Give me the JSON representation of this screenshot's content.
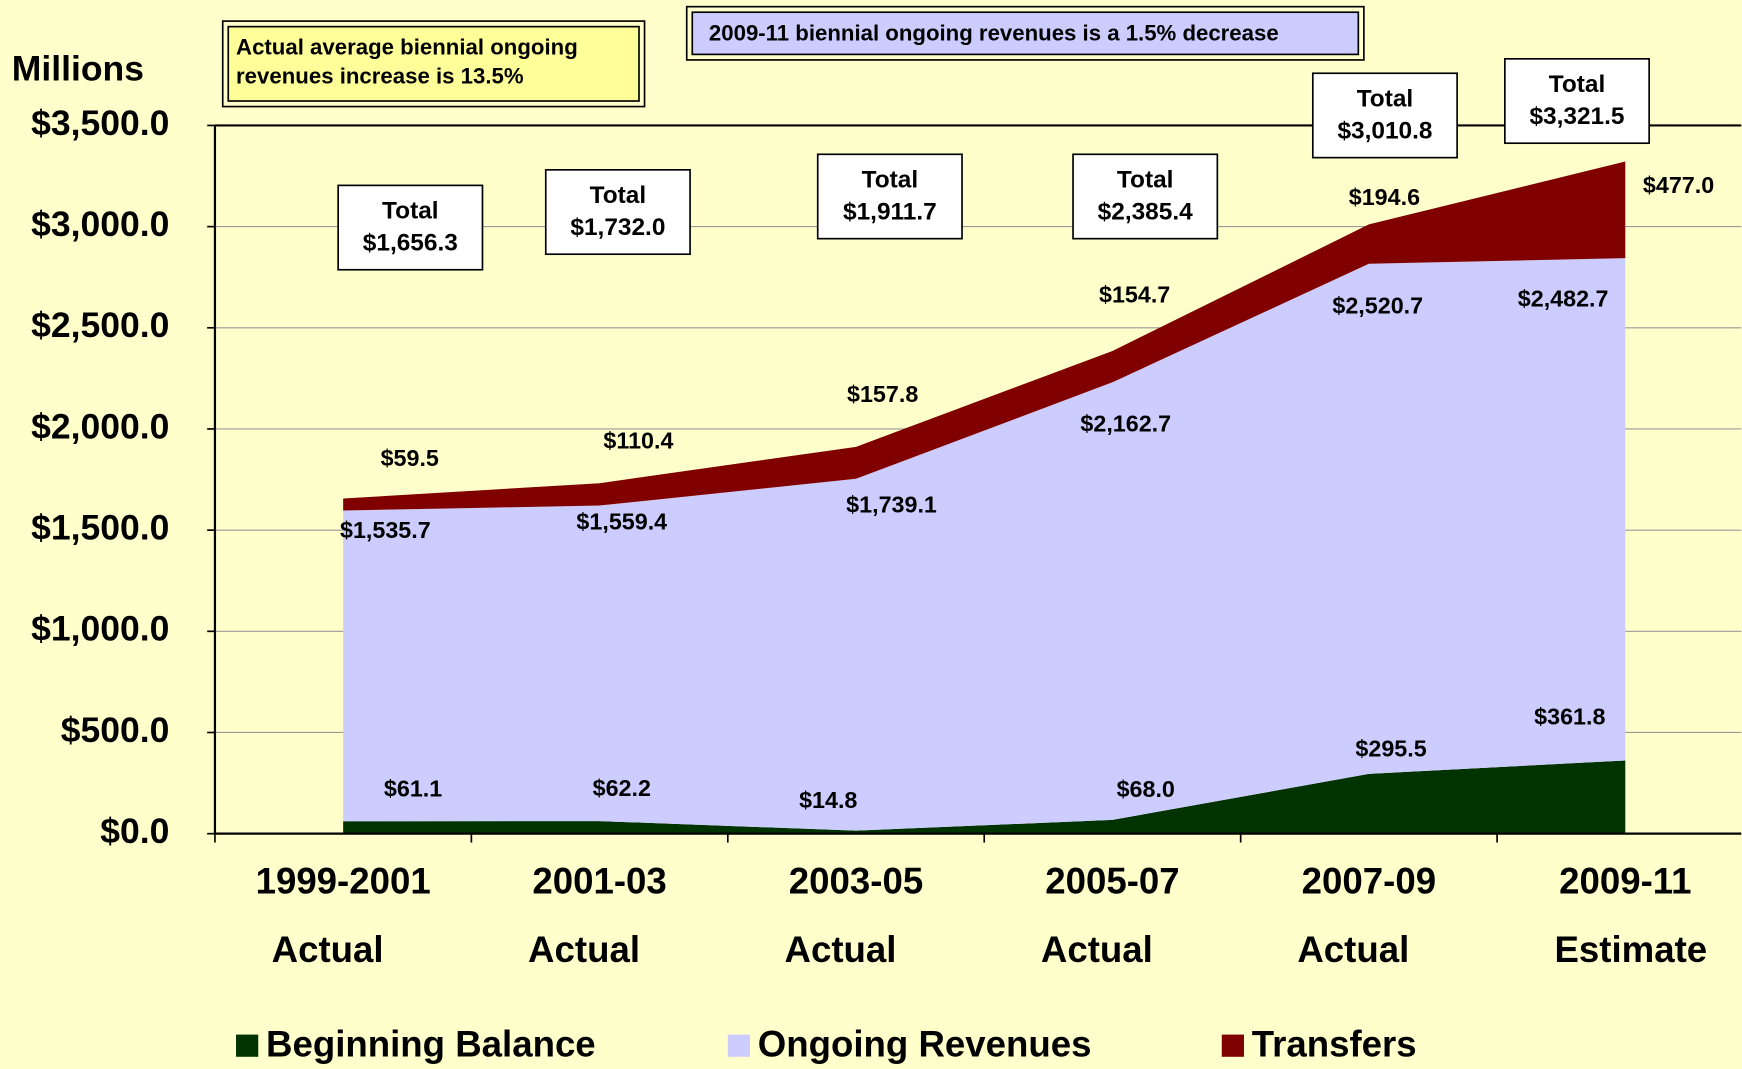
{
  "chart_data": {
    "type": "stacked_area",
    "y_axis_label": "Millions",
    "annotations": [
      "Actual average biennial ongoing revenues increase is 13.5%",
      "2009-11 biennial ongoing revenues is a 1.5% decrease"
    ],
    "categories": [
      "1999-2001",
      "2001-03",
      "2003-05",
      "2005-07",
      "2007-09",
      "2009-11"
    ],
    "category_sublabels": [
      "Actual",
      "Actual",
      "Actual",
      "Actual",
      "Actual",
      "Estimate"
    ],
    "series": [
      {
        "name": "Beginning Balance",
        "color": "#003300",
        "values": [
          61.1,
          62.2,
          14.8,
          68.0,
          295.5,
          361.8
        ],
        "value_labels": [
          "$61.1",
          "$62.2",
          "$14.8",
          "$68.0",
          "$295.5",
          "$361.8"
        ]
      },
      {
        "name": "Ongoing Revenues",
        "color": "#ccccff",
        "values": [
          1535.7,
          1559.4,
          1739.1,
          2162.7,
          2520.7,
          2482.7
        ],
        "value_labels": [
          "$1,535.7",
          "$1,559.4",
          "$1,739.1",
          "$2,162.7",
          "$2,520.7",
          "$2,482.7"
        ]
      },
      {
        "name": "Transfers",
        "color": "#800000",
        "values": [
          59.5,
          110.4,
          157.8,
          154.7,
          194.6,
          477.0
        ],
        "value_labels": [
          "$59.5",
          "$110.4",
          "$157.8",
          "$154.7",
          "$194.6",
          "$477.0"
        ]
      }
    ],
    "total_word": "Total",
    "totals": [
      1656.3,
      1732.0,
      1911.7,
      2385.4,
      3010.8,
      3321.5
    ],
    "total_labels": [
      "$1,656.3",
      "$1,732.0",
      "$1,911.7",
      "$2,385.4",
      "$3,010.8",
      "$3,321.5"
    ],
    "ylim": [
      0,
      3500
    ],
    "yticks": [
      {
        "value": 0,
        "label": "$0.0"
      },
      {
        "value": 500,
        "label": "$500.0"
      },
      {
        "value": 1000,
        "label": "$1,000.0"
      },
      {
        "value": 1500,
        "label": "$1,500.0"
      },
      {
        "value": 2000,
        "label": "$2,000.0"
      },
      {
        "value": 2500,
        "label": "$2,500.0"
      },
      {
        "value": 3000,
        "label": "$3,000.0"
      },
      {
        "value": 3500,
        "label": "$3,500.0"
      }
    ],
    "grid": true,
    "legend": "bottom"
  }
}
